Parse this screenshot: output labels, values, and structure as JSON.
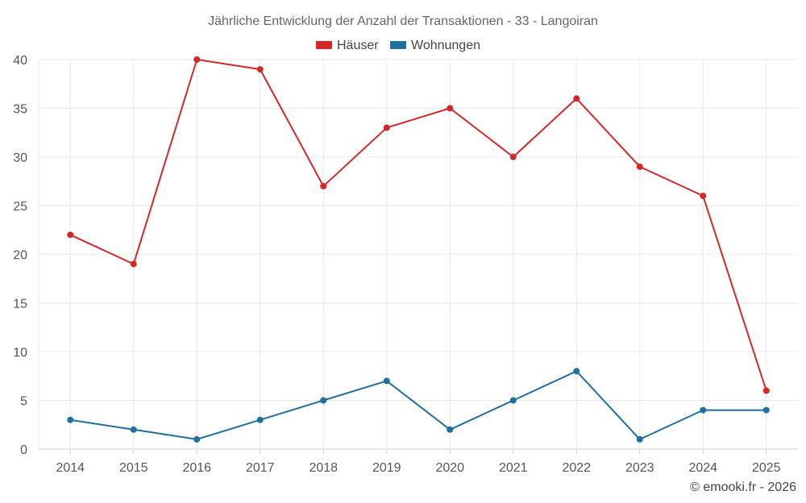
{
  "chart_data": {
    "type": "line",
    "title": "Jährliche Entwicklung der Anzahl der Transaktionen - 33 - Langoiran",
    "categories": [
      "2014",
      "2015",
      "2016",
      "2017",
      "2018",
      "2019",
      "2020",
      "2021",
      "2022",
      "2023",
      "2024",
      "2025"
    ],
    "series": [
      {
        "name": "Häuser",
        "color": "#d62728",
        "values": [
          22,
          19,
          40,
          39,
          27,
          33,
          35,
          30,
          36,
          29,
          26,
          6
        ]
      },
      {
        "name": "Wohnungen",
        "color": "#1f6fa0",
        "values": [
          3,
          2,
          1,
          3,
          5,
          7,
          2,
          5,
          8,
          1,
          4,
          4
        ]
      }
    ],
    "ylim": [
      0,
      40
    ],
    "yticks": [
      0,
      5,
      10,
      15,
      20,
      25,
      30,
      35,
      40
    ],
    "xlabel": "",
    "ylabel": "",
    "grid": true,
    "legend_position": "top-center"
  },
  "credit": "© emooki.fr - 2026"
}
